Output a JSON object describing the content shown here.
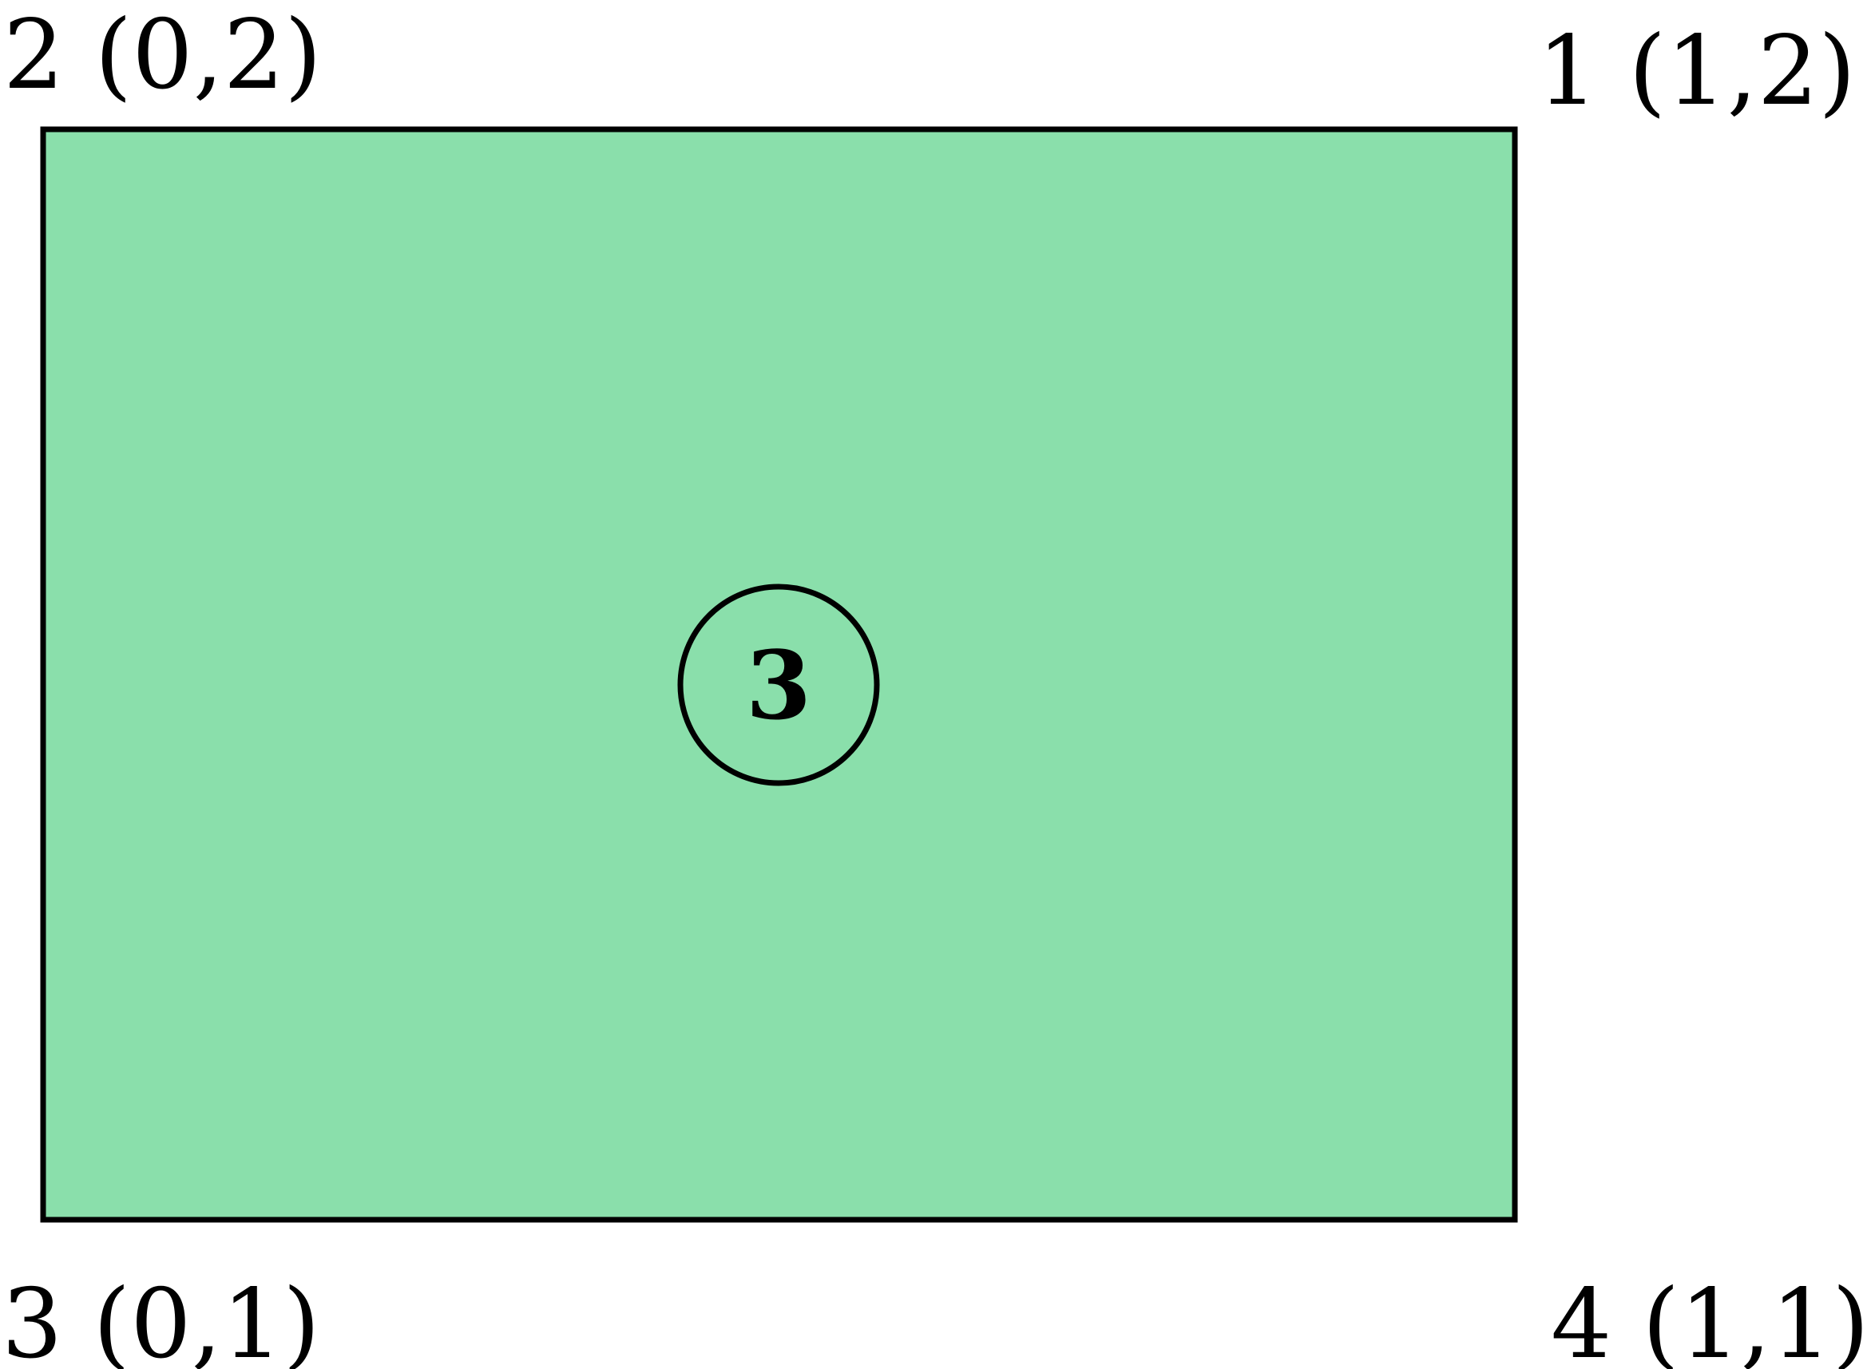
{
  "colors": {
    "element_fill": "#8ADFAB",
    "stroke": "#000000"
  },
  "element": {
    "label": "3"
  },
  "vertices": [
    {
      "id": "1",
      "text": "1 (1,2)"
    },
    {
      "id": "2",
      "text": "2 (0,2)"
    },
    {
      "id": "3",
      "text": "3 (0,1)"
    },
    {
      "id": "4",
      "text": "4 (1,1)"
    }
  ]
}
